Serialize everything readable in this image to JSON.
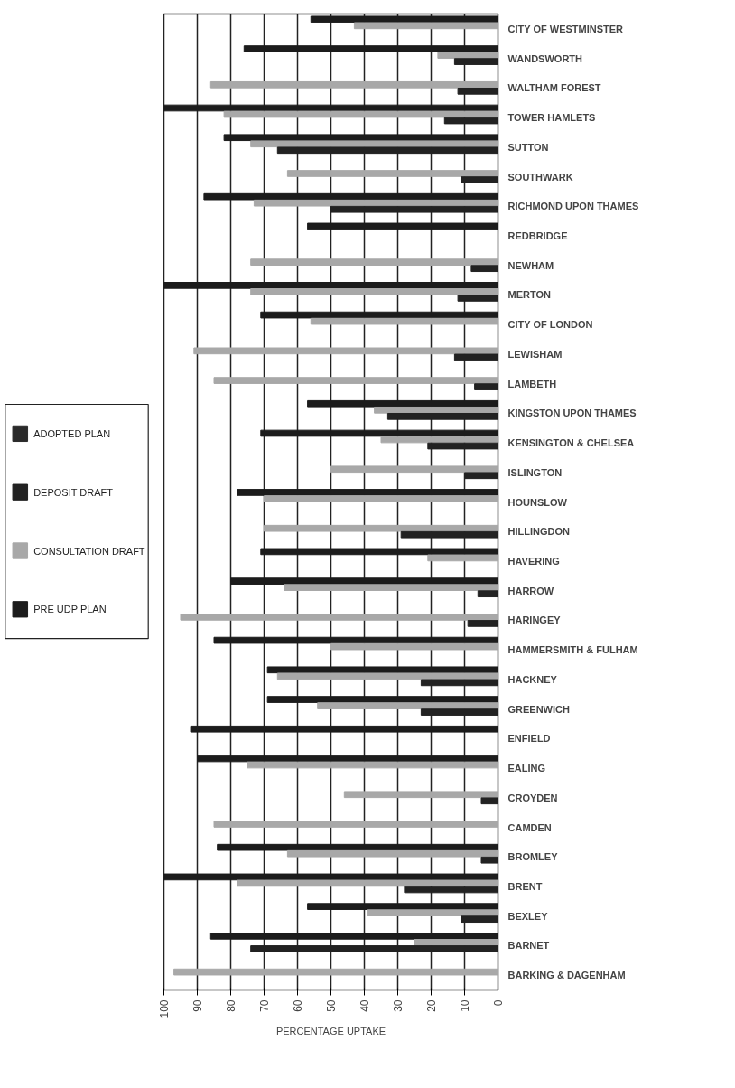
{
  "chart_data": {
    "type": "bar",
    "orientation": "horizontal",
    "xlabel": "PERCENTAGE UPTAKE",
    "categories": [
      "CITY OF WESTMINSTER",
      "WANDSWORTH",
      "WALTHAM FOREST",
      "TOWER HAMLETS",
      "SUTTON",
      "SOUTHWARK",
      "RICHMOND UPON THAMES",
      "REDBRIDGE",
      "NEWHAM",
      "MERTON",
      "CITY OF LONDON",
      "LEWISHAM",
      "LAMBETH",
      "KINGSTON UPON THAMES",
      "KENSINGTON & CHELSEA",
      "ISLINGTON",
      "HOUNSLOW",
      "HILLINGDON",
      "HAVERING",
      "HARROW",
      "HARINGEY",
      "HAMMERSMITH & FULHAM",
      "HACKNEY",
      "GREENWICH",
      "ENFIELD",
      "EALING",
      "CROYDEN",
      "CAMDEN",
      "BROMLEY",
      "BRENT",
      "BEXLEY",
      "BARNET",
      "BARKING & DAGENHAM"
    ],
    "series": [
      {
        "name": "PRE UDP PLAN",
        "color": "#1c1c1c",
        "values": [
          56,
          76,
          null,
          100,
          82,
          null,
          88,
          57,
          null,
          100,
          71,
          null,
          null,
          57,
          71,
          null,
          78,
          null,
          71,
          80,
          null,
          85,
          69,
          69,
          92,
          90,
          null,
          null,
          84,
          100,
          57,
          86,
          null
        ]
      },
      {
        "name": "CONSULTATION DRAFT",
        "color": "#a8a8a8",
        "values": [
          43,
          18,
          86,
          82,
          74,
          63,
          73,
          null,
          74,
          74,
          56,
          91,
          85,
          37,
          35,
          50,
          70,
          70,
          21,
          64,
          95,
          50,
          66,
          54,
          null,
          75,
          46,
          85,
          63,
          78,
          39,
          25,
          97
        ]
      },
      {
        "name": "DEPOSIT DRAFT",
        "color": "#222222",
        "values": [
          null,
          13,
          12,
          16,
          66,
          11,
          50,
          null,
          8,
          12,
          null,
          13,
          7,
          33,
          21,
          10,
          null,
          29,
          null,
          6,
          9,
          null,
          23,
          23,
          null,
          null,
          5,
          null,
          5,
          28,
          11,
          74,
          null
        ]
      },
      {
        "name": "ADOPTED PLAN",
        "color": "#2a2a2a",
        "values": [
          null,
          null,
          null,
          null,
          null,
          null,
          null,
          null,
          null,
          null,
          null,
          null,
          null,
          null,
          null,
          null,
          null,
          null,
          null,
          null,
          null,
          null,
          null,
          null,
          null,
          null,
          null,
          null,
          null,
          null,
          null,
          null,
          null
        ]
      }
    ],
    "xlim": [
      100,
      0
    ],
    "xticks": [
      100,
      90,
      80,
      70,
      60,
      50,
      40,
      30,
      20,
      10,
      0
    ],
    "grid": "x",
    "legend": "left"
  }
}
